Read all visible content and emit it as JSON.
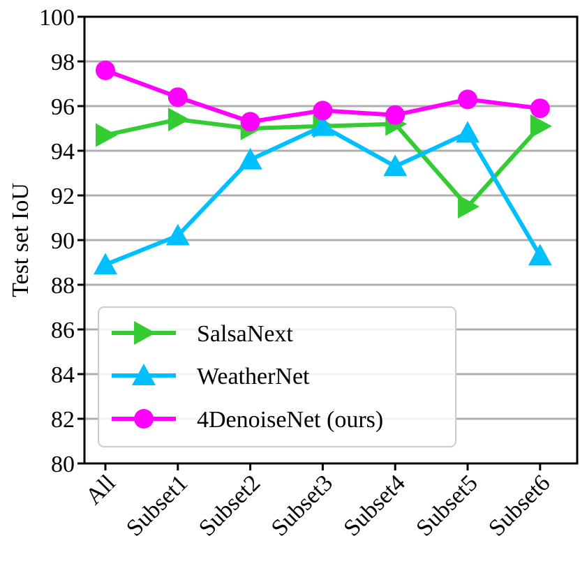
{
  "chart_data": {
    "type": "line",
    "title": "",
    "xlabel": "",
    "ylabel": "Test set IoU",
    "categories": [
      "All",
      "Subset1",
      "Subset2",
      "Subset3",
      "Subset4",
      "Subset5",
      "Subset6"
    ],
    "ylim": [
      80,
      100
    ],
    "yticks": [
      80,
      82,
      84,
      86,
      88,
      90,
      92,
      94,
      96,
      98,
      100
    ],
    "grid": true,
    "legend_position": "bottom-left",
    "series": [
      {
        "name": "SalsaNext",
        "color": "#33cc33",
        "marker": "triangle-right",
        "values": [
          94.7,
          95.4,
          95.0,
          95.1,
          95.2,
          91.5,
          95.1
        ]
      },
      {
        "name": "WeatherNet",
        "color": "#00bfff",
        "marker": "triangle-up",
        "values": [
          88.9,
          90.2,
          93.6,
          95.1,
          93.3,
          94.8,
          89.3
        ]
      },
      {
        "name": "4DenoiseNet (ours)",
        "color": "#ff00ff",
        "marker": "circle",
        "values": [
          97.6,
          96.4,
          95.3,
          95.8,
          95.6,
          96.3,
          95.9
        ]
      }
    ]
  }
}
